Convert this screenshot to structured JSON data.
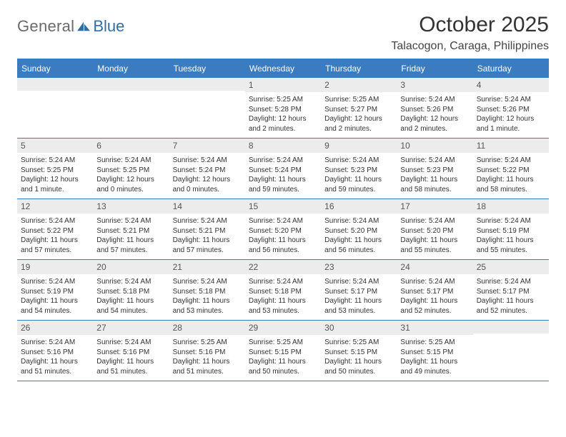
{
  "brand": {
    "general": "General",
    "blue": "Blue"
  },
  "title": "October 2025",
  "location": "Talacogon, Caraga, Philippines",
  "colors": {
    "header_bg": "#3b7bbf",
    "header_text": "#ffffff",
    "daynum_bg": "#ececec",
    "daynum_text": "#555555",
    "body_text": "#333333",
    "rule": "#3b7bbf",
    "logo_gray": "#6a6a6a",
    "logo_blue": "#2f6fa8"
  },
  "typography": {
    "title_fontsize": 30,
    "location_fontsize": 16,
    "weekday_fontsize": 12,
    "daynum_fontsize": 12,
    "body_fontsize": 10
  },
  "weekdays": [
    "Sunday",
    "Monday",
    "Tuesday",
    "Wednesday",
    "Thursday",
    "Friday",
    "Saturday"
  ],
  "weeks": [
    [
      {
        "day": "",
        "lines": [
          "",
          "",
          "",
          ""
        ]
      },
      {
        "day": "",
        "lines": [
          "",
          "",
          "",
          ""
        ]
      },
      {
        "day": "",
        "lines": [
          "",
          "",
          "",
          ""
        ]
      },
      {
        "day": "1",
        "lines": [
          "Sunrise: 5:25 AM",
          "Sunset: 5:28 PM",
          "Daylight: 12 hours",
          "and 2 minutes."
        ]
      },
      {
        "day": "2",
        "lines": [
          "Sunrise: 5:25 AM",
          "Sunset: 5:27 PM",
          "Daylight: 12 hours",
          "and 2 minutes."
        ]
      },
      {
        "day": "3",
        "lines": [
          "Sunrise: 5:24 AM",
          "Sunset: 5:26 PM",
          "Daylight: 12 hours",
          "and 2 minutes."
        ]
      },
      {
        "day": "4",
        "lines": [
          "Sunrise: 5:24 AM",
          "Sunset: 5:26 PM",
          "Daylight: 12 hours",
          "and 1 minute."
        ]
      }
    ],
    [
      {
        "day": "5",
        "lines": [
          "Sunrise: 5:24 AM",
          "Sunset: 5:25 PM",
          "Daylight: 12 hours",
          "and 1 minute."
        ]
      },
      {
        "day": "6",
        "lines": [
          "Sunrise: 5:24 AM",
          "Sunset: 5:25 PM",
          "Daylight: 12 hours",
          "and 0 minutes."
        ]
      },
      {
        "day": "7",
        "lines": [
          "Sunrise: 5:24 AM",
          "Sunset: 5:24 PM",
          "Daylight: 12 hours",
          "and 0 minutes."
        ]
      },
      {
        "day": "8",
        "lines": [
          "Sunrise: 5:24 AM",
          "Sunset: 5:24 PM",
          "Daylight: 11 hours",
          "and 59 minutes."
        ]
      },
      {
        "day": "9",
        "lines": [
          "Sunrise: 5:24 AM",
          "Sunset: 5:23 PM",
          "Daylight: 11 hours",
          "and 59 minutes."
        ]
      },
      {
        "day": "10",
        "lines": [
          "Sunrise: 5:24 AM",
          "Sunset: 5:23 PM",
          "Daylight: 11 hours",
          "and 58 minutes."
        ]
      },
      {
        "day": "11",
        "lines": [
          "Sunrise: 5:24 AM",
          "Sunset: 5:22 PM",
          "Daylight: 11 hours",
          "and 58 minutes."
        ]
      }
    ],
    [
      {
        "day": "12",
        "lines": [
          "Sunrise: 5:24 AM",
          "Sunset: 5:22 PM",
          "Daylight: 11 hours",
          "and 57 minutes."
        ]
      },
      {
        "day": "13",
        "lines": [
          "Sunrise: 5:24 AM",
          "Sunset: 5:21 PM",
          "Daylight: 11 hours",
          "and 57 minutes."
        ]
      },
      {
        "day": "14",
        "lines": [
          "Sunrise: 5:24 AM",
          "Sunset: 5:21 PM",
          "Daylight: 11 hours",
          "and 57 minutes."
        ]
      },
      {
        "day": "15",
        "lines": [
          "Sunrise: 5:24 AM",
          "Sunset: 5:20 PM",
          "Daylight: 11 hours",
          "and 56 minutes."
        ]
      },
      {
        "day": "16",
        "lines": [
          "Sunrise: 5:24 AM",
          "Sunset: 5:20 PM",
          "Daylight: 11 hours",
          "and 56 minutes."
        ]
      },
      {
        "day": "17",
        "lines": [
          "Sunrise: 5:24 AM",
          "Sunset: 5:20 PM",
          "Daylight: 11 hours",
          "and 55 minutes."
        ]
      },
      {
        "day": "18",
        "lines": [
          "Sunrise: 5:24 AM",
          "Sunset: 5:19 PM",
          "Daylight: 11 hours",
          "and 55 minutes."
        ]
      }
    ],
    [
      {
        "day": "19",
        "lines": [
          "Sunrise: 5:24 AM",
          "Sunset: 5:19 PM",
          "Daylight: 11 hours",
          "and 54 minutes."
        ]
      },
      {
        "day": "20",
        "lines": [
          "Sunrise: 5:24 AM",
          "Sunset: 5:18 PM",
          "Daylight: 11 hours",
          "and 54 minutes."
        ]
      },
      {
        "day": "21",
        "lines": [
          "Sunrise: 5:24 AM",
          "Sunset: 5:18 PM",
          "Daylight: 11 hours",
          "and 53 minutes."
        ]
      },
      {
        "day": "22",
        "lines": [
          "Sunrise: 5:24 AM",
          "Sunset: 5:18 PM",
          "Daylight: 11 hours",
          "and 53 minutes."
        ]
      },
      {
        "day": "23",
        "lines": [
          "Sunrise: 5:24 AM",
          "Sunset: 5:17 PM",
          "Daylight: 11 hours",
          "and 53 minutes."
        ]
      },
      {
        "day": "24",
        "lines": [
          "Sunrise: 5:24 AM",
          "Sunset: 5:17 PM",
          "Daylight: 11 hours",
          "and 52 minutes."
        ]
      },
      {
        "day": "25",
        "lines": [
          "Sunrise: 5:24 AM",
          "Sunset: 5:17 PM",
          "Daylight: 11 hours",
          "and 52 minutes."
        ]
      }
    ],
    [
      {
        "day": "26",
        "lines": [
          "Sunrise: 5:24 AM",
          "Sunset: 5:16 PM",
          "Daylight: 11 hours",
          "and 51 minutes."
        ]
      },
      {
        "day": "27",
        "lines": [
          "Sunrise: 5:24 AM",
          "Sunset: 5:16 PM",
          "Daylight: 11 hours",
          "and 51 minutes."
        ]
      },
      {
        "day": "28",
        "lines": [
          "Sunrise: 5:25 AM",
          "Sunset: 5:16 PM",
          "Daylight: 11 hours",
          "and 51 minutes."
        ]
      },
      {
        "day": "29",
        "lines": [
          "Sunrise: 5:25 AM",
          "Sunset: 5:15 PM",
          "Daylight: 11 hours",
          "and 50 minutes."
        ]
      },
      {
        "day": "30",
        "lines": [
          "Sunrise: 5:25 AM",
          "Sunset: 5:15 PM",
          "Daylight: 11 hours",
          "and 50 minutes."
        ]
      },
      {
        "day": "31",
        "lines": [
          "Sunrise: 5:25 AM",
          "Sunset: 5:15 PM",
          "Daylight: 11 hours",
          "and 49 minutes."
        ]
      },
      {
        "day": "",
        "lines": [
          "",
          "",
          "",
          ""
        ]
      }
    ]
  ]
}
